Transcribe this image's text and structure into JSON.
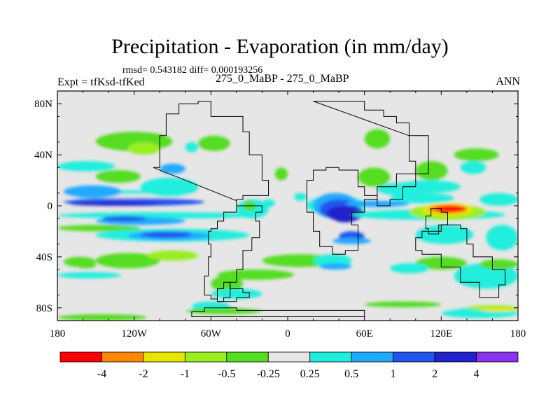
{
  "chart_data": {
    "type": "heatmap",
    "title": "Precipitation - Evaporation (in mm/day)",
    "stats_text": "rmsd= 0.543182  diff= 0.000193256",
    "left_label": "Expt = tfKsd-tfKed",
    "center_label": "275_0_MaBP - 275_0_MaBP",
    "right_label": "ANN",
    "xlim": [
      -180,
      180
    ],
    "ylim": [
      -90,
      90
    ],
    "x_ticks": [
      {
        "value": -180,
        "label": "180"
      },
      {
        "value": -120,
        "label": "120W"
      },
      {
        "value": -60,
        "label": "60W"
      },
      {
        "value": 0,
        "label": "0"
      },
      {
        "value": 60,
        "label": "60E"
      },
      {
        "value": 120,
        "label": "120E"
      },
      {
        "value": 180,
        "label": "180"
      }
    ],
    "y_ticks": [
      {
        "value": 80,
        "label": "80N"
      },
      {
        "value": 40,
        "label": "40N"
      },
      {
        "value": 0,
        "label": "0"
      },
      {
        "value": -40,
        "label": "40S"
      },
      {
        "value": -80,
        "label": "80S"
      }
    ],
    "colorbar": {
      "colors": [
        "#ff0000",
        "#ff8800",
        "#e6e600",
        "#99ee22",
        "#55dd22",
        "#e6e6e6",
        "#22eedd",
        "#22aaff",
        "#2255ee",
        "#2222cc",
        "#8833ee"
      ],
      "levels": [
        "-4",
        "-2",
        "-1",
        "-0.5",
        "-0.25",
        "0.25",
        "0.5",
        "1",
        "2",
        "4"
      ]
    },
    "background_color": "#e6e6e6",
    "regions": [
      {
        "lon": -175,
        "lat": 9,
        "w": 110,
        "h": 3,
        "level": 5
      },
      {
        "lon": -175,
        "lat": 12,
        "w": 100,
        "h": 3,
        "level": 6
      },
      {
        "lon": -175,
        "lat": 16,
        "w": 45,
        "h": 10,
        "level": 7
      },
      {
        "lon": -175,
        "lat": 6,
        "w": 110,
        "h": 6,
        "level": 8
      },
      {
        "lon": -170,
        "lat": 3,
        "w": 70,
        "h": 3,
        "level": 9
      },
      {
        "lon": -180,
        "lat": -5,
        "w": 160,
        "h": 5,
        "level": 6
      },
      {
        "lon": -150,
        "lat": -9,
        "w": 70,
        "h": 6,
        "level": 7
      },
      {
        "lon": -145,
        "lat": -8,
        "w": 35,
        "h": 4,
        "level": 8
      },
      {
        "lon": -180,
        "lat": -15,
        "w": 65,
        "h": 5,
        "level": 4
      },
      {
        "lon": -150,
        "lat": -18,
        "w": 120,
        "h": 10,
        "level": 6
      },
      {
        "lon": -125,
        "lat": -20,
        "w": 65,
        "h": 7,
        "level": 7
      },
      {
        "lon": -115,
        "lat": -20,
        "w": 40,
        "h": 5,
        "level": 8
      },
      {
        "lon": -175,
        "lat": -40,
        "w": 25,
        "h": 8,
        "level": 4
      },
      {
        "lon": -165,
        "lat": -45,
        "w": 15,
        "h": 4,
        "level": 4
      },
      {
        "lon": -150,
        "lat": -37,
        "w": 50,
        "h": 12,
        "level": 4
      },
      {
        "lon": -110,
        "lat": -35,
        "w": 40,
        "h": 8,
        "level": 3
      },
      {
        "lon": -180,
        "lat": -52,
        "w": 50,
        "h": 5,
        "level": 6
      },
      {
        "lon": -180,
        "lat": -85,
        "w": 70,
        "h": 5,
        "level": 4
      },
      {
        "lon": -180,
        "lat": -80,
        "w": 360,
        "h": 2,
        "level": 5
      },
      {
        "lon": -180,
        "lat": 35,
        "w": 45,
        "h": 8,
        "level": 6
      },
      {
        "lon": -150,
        "lat": 28,
        "w": 35,
        "h": 10,
        "level": 4
      },
      {
        "lon": -135,
        "lat": 26,
        "w": 15,
        "h": 6,
        "level": 4
      },
      {
        "lon": -115,
        "lat": 22,
        "w": 45,
        "h": 15,
        "level": 6
      },
      {
        "lon": -100,
        "lat": 33,
        "w": 20,
        "h": 8,
        "level": 7
      },
      {
        "lon": -150,
        "lat": 58,
        "w": 60,
        "h": 15,
        "level": 4
      },
      {
        "lon": -125,
        "lat": 50,
        "w": 25,
        "h": 10,
        "level": 3
      },
      {
        "lon": -70,
        "lat": 55,
        "w": 25,
        "h": 12,
        "level": 4
      },
      {
        "lon": -80,
        "lat": 50,
        "w": 10,
        "h": 8,
        "level": 6
      },
      {
        "lon": -40,
        "lat": 5,
        "w": 25,
        "h": 15,
        "level": 6
      },
      {
        "lon": -35,
        "lat": 4,
        "w": 10,
        "h": 8,
        "level": 4
      },
      {
        "lon": 15,
        "lat": 8,
        "w": 45,
        "h": 15,
        "level": 6
      },
      {
        "lon": 20,
        "lat": 10,
        "w": 35,
        "h": 20,
        "level": 7
      },
      {
        "lon": 25,
        "lat": 5,
        "w": 30,
        "h": 15,
        "level": 8
      },
      {
        "lon": 30,
        "lat": 0,
        "w": 30,
        "h": 12,
        "level": 9
      },
      {
        "lon": 35,
        "lat": -5,
        "w": 20,
        "h": 8,
        "level": 9
      },
      {
        "lon": 45,
        "lat": 4,
        "w": 50,
        "h": 5,
        "level": 7
      },
      {
        "lon": 50,
        "lat": -3,
        "w": 120,
        "h": 8,
        "level": 6
      },
      {
        "lon": 40,
        "lat": -20,
        "w": 20,
        "h": 8,
        "level": 8
      },
      {
        "lon": 35,
        "lat": -25,
        "w": 30,
        "h": 5,
        "level": 7
      },
      {
        "lon": 55,
        "lat": 30,
        "w": 25,
        "h": 15,
        "level": 4
      },
      {
        "lon": 60,
        "lat": 60,
        "w": 20,
        "h": 15,
        "level": 4
      },
      {
        "lon": 70,
        "lat": 18,
        "w": 40,
        "h": 10,
        "level": 6
      },
      {
        "lon": 80,
        "lat": 10,
        "w": 50,
        "h": 8,
        "level": 6
      },
      {
        "lon": 95,
        "lat": 1,
        "w": 60,
        "h": 12,
        "level": 3
      },
      {
        "lon": 105,
        "lat": 2,
        "w": 40,
        "h": 10,
        "level": 2
      },
      {
        "lon": 110,
        "lat": 1,
        "w": 30,
        "h": 7,
        "level": 1
      },
      {
        "lon": 115,
        "lat": 0,
        "w": 25,
        "h": 5,
        "level": 0
      },
      {
        "lon": 100,
        "lat": -15,
        "w": 45,
        "h": 15,
        "level": 6
      },
      {
        "lon": 85,
        "lat": 20,
        "w": 50,
        "h": 10,
        "level": 6
      },
      {
        "lon": 100,
        "lat": 35,
        "w": 25,
        "h": 15,
        "level": 4
      },
      {
        "lon": 135,
        "lat": 35,
        "w": 20,
        "h": 10,
        "level": 6
      },
      {
        "lon": 130,
        "lat": 45,
        "w": 35,
        "h": 10,
        "level": 4
      },
      {
        "lon": 150,
        "lat": 10,
        "w": 30,
        "h": 10,
        "level": 6
      },
      {
        "lon": 155,
        "lat": -15,
        "w": 25,
        "h": 20,
        "level": 6
      },
      {
        "lon": 100,
        "lat": -40,
        "w": 40,
        "h": 10,
        "level": 4
      },
      {
        "lon": 130,
        "lat": -45,
        "w": 50,
        "h": 20,
        "level": 6
      },
      {
        "lon": 150,
        "lat": -42,
        "w": 30,
        "h": 8,
        "level": 4
      },
      {
        "lon": -20,
        "lat": -38,
        "w": 60,
        "h": 10,
        "level": 4
      },
      {
        "lon": -55,
        "lat": -50,
        "w": 60,
        "h": 8,
        "level": 4
      },
      {
        "lon": -60,
        "lat": -55,
        "w": 25,
        "h": 12,
        "level": 4
      },
      {
        "lon": -60,
        "lat": -65,
        "w": 40,
        "h": 8,
        "level": 6
      },
      {
        "lon": -75,
        "lat": -75,
        "w": 30,
        "h": 8,
        "level": 6
      },
      {
        "lon": -80,
        "lat": -80,
        "w": 60,
        "h": 5,
        "level": 4
      },
      {
        "lon": 20,
        "lat": -38,
        "w": 30,
        "h": 10,
        "level": 6
      },
      {
        "lon": 25,
        "lat": -45,
        "w": 25,
        "h": 5,
        "level": 7
      },
      {
        "lon": 80,
        "lat": -45,
        "w": 30,
        "h": 8,
        "level": 6
      },
      {
        "lon": 120,
        "lat": -80,
        "w": 60,
        "h": 8,
        "level": 6
      },
      {
        "lon": 140,
        "lat": -78,
        "w": 40,
        "h": 4,
        "level": 3
      },
      {
        "lon": 150,
        "lat": -80,
        "w": 30,
        "h": 3,
        "level": 2
      },
      {
        "lon": 60,
        "lat": -75,
        "w": 60,
        "h": 5,
        "level": 4
      },
      {
        "lon": 5,
        "lat": 10,
        "w": 10,
        "h": 6,
        "level": 6
      },
      {
        "lon": -10,
        "lat": 30,
        "w": 10,
        "h": 10,
        "level": 4
      },
      {
        "lon": -20,
        "lat": 5,
        "w": 10,
        "h": 6,
        "level": 6
      }
    ],
    "continents": [
      {
        "name": "south-america-outline",
        "coords": [
          [
            -105,
            30
          ],
          [
            -100,
            55
          ],
          [
            -95,
            72
          ],
          [
            -85,
            80
          ],
          [
            -70,
            82
          ],
          [
            -60,
            70
          ],
          [
            -40,
            70
          ],
          [
            -35,
            58
          ],
          [
            -30,
            40
          ],
          [
            -20,
            20
          ],
          [
            -15,
            8
          ],
          [
            -35,
            5
          ],
          [
            -40,
            -5
          ],
          [
            -50,
            -12
          ],
          [
            -55,
            -18
          ],
          [
            -60,
            -20
          ],
          [
            -62,
            -30
          ],
          [
            -60,
            -40
          ],
          [
            -62,
            -55
          ],
          [
            -65,
            -70
          ],
          [
            -60,
            -73
          ],
          [
            -55,
            -75
          ],
          [
            -50,
            -72
          ],
          [
            -45,
            -60
          ],
          [
            -40,
            -50
          ],
          [
            -35,
            -35
          ],
          [
            -28,
            -25
          ],
          [
            -22,
            -12
          ],
          [
            -25,
            -5
          ],
          [
            -20,
            0
          ],
          [
            -40,
            4
          ]
        ]
      },
      {
        "name": "africa-eurasia-outline",
        "coords": [
          [
            20,
            82
          ],
          [
            50,
            82
          ],
          [
            60,
            75
          ],
          [
            75,
            70
          ],
          [
            85,
            65
          ],
          [
            95,
            55
          ],
          [
            110,
            38
          ],
          [
            110,
            25
          ],
          [
            100,
            15
          ],
          [
            90,
            5
          ],
          [
            80,
            0
          ],
          [
            70,
            8
          ],
          [
            60,
            15
          ],
          [
            55,
            28
          ],
          [
            40,
            30
          ],
          [
            30,
            28
          ],
          [
            20,
            20
          ],
          [
            15,
            8
          ],
          [
            15,
            -5
          ],
          [
            20,
            -20
          ],
          [
            25,
            -32
          ],
          [
            35,
            -38
          ],
          [
            45,
            -35
          ],
          [
            55,
            -28
          ],
          [
            55,
            -15
          ],
          [
            50,
            -5
          ],
          [
            60,
            5
          ],
          [
            70,
            15
          ],
          [
            85,
            25
          ],
          [
            100,
            35
          ],
          [
            95,
            55
          ]
        ]
      },
      {
        "name": "australia-outline",
        "coords": [
          [
            100,
            -25
          ],
          [
            105,
            -20
          ],
          [
            120,
            -15
          ],
          [
            135,
            -18
          ],
          [
            140,
            -30
          ],
          [
            145,
            -40
          ],
          [
            160,
            -50
          ],
          [
            170,
            -62
          ],
          [
            165,
            -72
          ],
          [
            150,
            -60
          ],
          [
            135,
            -48
          ],
          [
            120,
            -38
          ],
          [
            105,
            -35
          ],
          [
            100,
            -25
          ]
        ]
      },
      {
        "name": "island-outline-east",
        "coords": [
          [
            112,
            -2
          ],
          [
            120,
            -5
          ],
          [
            125,
            -15
          ],
          [
            118,
            -22
          ],
          [
            110,
            -18
          ],
          [
            108,
            -8
          ],
          [
            112,
            -2
          ]
        ]
      },
      {
        "name": "antarctica-shelf-outline",
        "coords": [
          [
            -65,
            -80
          ],
          [
            -40,
            -82
          ],
          [
            -20,
            -82
          ],
          [
            10,
            -82
          ],
          [
            40,
            -82
          ],
          [
            60,
            -83
          ],
          [
            60,
            -87
          ],
          [
            -70,
            -87
          ],
          [
            -75,
            -83
          ],
          [
            -65,
            -80
          ]
        ]
      },
      {
        "name": "peninsula-outline-south",
        "coords": [
          [
            -50,
            -60
          ],
          [
            -45,
            -65
          ],
          [
            -35,
            -68
          ],
          [
            -30,
            -72
          ],
          [
            -40,
            -75
          ],
          [
            -55,
            -72
          ],
          [
            -55,
            -65
          ],
          [
            -50,
            -60
          ]
        ]
      }
    ]
  }
}
